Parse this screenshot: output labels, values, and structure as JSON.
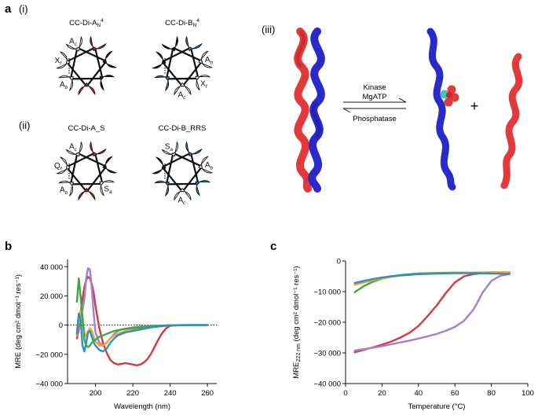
{
  "panel_labels": {
    "a": "a",
    "b": "b",
    "c": "c",
    "i": "(i)",
    "ii": "(ii)",
    "iii": "(iii)"
  },
  "wheels": [
    {
      "id": "w1",
      "title": "CC-Di-AN4",
      "title_main": "CC-Di-A",
      "title_sub": "N",
      "title_sup": "4",
      "cx": 110,
      "cy": 84,
      "residues": [
        {
          "letter": "E",
          "sub": "g",
          "color": "#e81c1c"
        },
        {
          "letter": "L",
          "sub": "d",
          "color": "#111111"
        },
        {
          "letter": "I",
          "sub": "a",
          "color": "#111111"
        },
        {
          "letter": "E",
          "sub": "e",
          "color": "#e81c1c"
        },
        {
          "letter": "A",
          "sub": "b",
          "color": "#ffffff"
        },
        {
          "letter": "X",
          "sub": "f",
          "color": "#ffffff"
        },
        {
          "letter": "A",
          "sub": "c",
          "color": "#ffffff"
        }
      ]
    },
    {
      "id": "w2",
      "title": "CC-Di-BN4",
      "title_main": "CC-Di-B",
      "title_sub": "N",
      "title_sup": "4",
      "cx": 232,
      "cy": 84,
      "residues": [
        {
          "letter": "K",
          "sub": "e",
          "color": "#2a7de1"
        },
        {
          "letter": "A",
          "sub": "b",
          "color": "#ffffff"
        },
        {
          "letter": "X",
          "sub": "f",
          "color": "#ffffff"
        },
        {
          "letter": "A",
          "sub": "c",
          "color": "#ffffff"
        },
        {
          "letter": "K",
          "sub": "g",
          "color": "#2a7de1"
        },
        {
          "letter": "L",
          "sub": "d",
          "color": "#111111"
        },
        {
          "letter": "I",
          "sub": "a",
          "color": "#111111"
        }
      ]
    },
    {
      "id": "w3",
      "title": "CC-Di-A_S",
      "title_main": "CC-Di-A_S",
      "title_sub": "",
      "title_sup": "",
      "cx": 110,
      "cy": 218,
      "residues": [
        {
          "letter": "E",
          "sub": "g",
          "color": "#e81c1c"
        },
        {
          "letter": "L",
          "sub": "d",
          "color": "#111111"
        },
        {
          "letter": "S",
          "sub": "a",
          "color": "#ffffff"
        },
        {
          "letter": "E",
          "sub": "e",
          "color": "#e81c1c"
        },
        {
          "letter": "A",
          "sub": "b",
          "color": "#ffffff"
        },
        {
          "letter": "Q",
          "sub": "f",
          "color": "#ffffff"
        },
        {
          "letter": "A",
          "sub": "c",
          "color": "#ffffff"
        }
      ]
    },
    {
      "id": "w4",
      "title": "CC-Di-B_RRS",
      "title_main": "CC-Di-B_RRS",
      "title_sub": "",
      "title_sup": "",
      "cx": 232,
      "cy": 218,
      "residues": [
        {
          "letter": "R",
          "sub": "e",
          "color": "#2a7de1"
        },
        {
          "letter": "A",
          "sub": "b",
          "color": "#ffffff"
        },
        {
          "letter": "R",
          "sub": "f",
          "color": "#2a7de1"
        },
        {
          "letter": "A",
          "sub": "c",
          "color": "#ffffff"
        },
        {
          "letter": "K",
          "sub": "g",
          "color": "#2a7de1"
        },
        {
          "letter": "L",
          "sub": "d",
          "color": "#111111"
        },
        {
          "letter": "S",
          "sub": "a",
          "color": "#ffffff"
        }
      ]
    }
  ],
  "scheme": {
    "forward_top": "Kinase",
    "forward_bottom": "MgATP",
    "reverse": "Phosphatase",
    "plus": "+"
  },
  "chart_data": [
    {
      "id": "b",
      "type": "line",
      "xlabel": "Wavelength (nm)",
      "ylabel": "MRE (deg cm² dmol⁻¹ res⁻¹)",
      "xlim": [
        185,
        265
      ],
      "ylim": [
        -40000,
        45000
      ],
      "xticks": [
        200,
        220,
        240,
        260
      ],
      "yticks": [
        -40000,
        -20000,
        0,
        20000,
        40000
      ],
      "ytick_labels": [
        "−40 000",
        "−20 000",
        "0",
        "20 000",
        "40 000"
      ],
      "zero_line": "dotted",
      "series": [
        {
          "color": "#d73a3a",
          "x": [
            190,
            191,
            192,
            193,
            194,
            195,
            196,
            197,
            198,
            199,
            200,
            202,
            204,
            206,
            208,
            210,
            212,
            214,
            216,
            218,
            220,
            222,
            224,
            226,
            228,
            230,
            232,
            234,
            236,
            238,
            240,
            245,
            250,
            255,
            260
          ],
          "y": [
            -9000,
            -3000,
            8000,
            18000,
            26000,
            31000,
            33000,
            32000,
            28000,
            22000,
            13000,
            -2000,
            -12000,
            -19000,
            -24000,
            -26000,
            -27000,
            -26500,
            -26000,
            -26500,
            -27000,
            -27500,
            -27000,
            -25500,
            -23000,
            -19000,
            -14000,
            -9000,
            -5000,
            -2000,
            -500,
            0,
            0,
            0,
            0
          ]
        },
        {
          "color": "#a37fd6",
          "x": [
            190,
            191,
            192,
            193,
            194,
            195,
            196,
            197,
            198,
            199,
            200,
            202,
            204,
            206,
            208,
            210,
            212,
            214,
            216,
            218,
            220,
            222,
            224,
            226,
            228,
            230,
            235,
            240,
            250,
            260
          ],
          "y": [
            -3000,
            2000,
            6000,
            10000,
            18000,
            32000,
            39000,
            38000,
            25000,
            8000,
            -5000,
            -12000,
            -14000,
            -12000,
            -9000,
            -6000,
            -4000,
            -3000,
            -2500,
            -2000,
            -1500,
            -1200,
            -1000,
            -800,
            -600,
            -500,
            -300,
            -100,
            0,
            0
          ]
        },
        {
          "color": "#f0a52a",
          "x": [
            190,
            191,
            192,
            193,
            194,
            195,
            196,
            197,
            198,
            199,
            200,
            202,
            204,
            206,
            208,
            210,
            212,
            214,
            216,
            218,
            220,
            222,
            224,
            226,
            228,
            230,
            235,
            240,
            250,
            260
          ],
          "y": [
            -7000,
            2000,
            10000,
            6000,
            -5000,
            -8000,
            -4000,
            -2000,
            -4000,
            -8000,
            -11000,
            -14000,
            -14000,
            -12000,
            -9000,
            -7000,
            -6000,
            -5000,
            -4000,
            -3500,
            -3000,
            -2500,
            -2000,
            -1500,
            -1200,
            -1000,
            -500,
            -200,
            0,
            0
          ]
        },
        {
          "color": "#3cab3c",
          "x": [
            190,
            191,
            192,
            193,
            194,
            195,
            196,
            197,
            198,
            199,
            200,
            202,
            204,
            206,
            208,
            210,
            212,
            214,
            216,
            218,
            220,
            222,
            224,
            226,
            228,
            230,
            235,
            240,
            250,
            260
          ],
          "y": [
            16000,
            32000,
            20000,
            5000,
            -10000,
            -14000,
            -15000,
            -14000,
            -12000,
            -11000,
            -10000,
            -8000,
            -7000,
            -6000,
            -5000,
            -4000,
            -3500,
            -3000,
            -2500,
            -2200,
            -2000,
            -1800,
            -1500,
            -1200,
            -1000,
            -800,
            -400,
            -100,
            0,
            0
          ]
        },
        {
          "color": "#2b8fc9",
          "x": [
            190,
            191,
            192,
            193,
            194,
            195,
            196,
            197,
            198,
            199,
            200,
            202,
            204,
            206,
            208,
            210,
            212,
            214,
            216,
            218,
            220,
            222,
            224,
            226,
            228,
            230,
            235,
            240,
            250,
            260
          ],
          "y": [
            -6000,
            8000,
            4000,
            -14000,
            -18000,
            -12000,
            -5000,
            -4000,
            -8000,
            -12000,
            -14000,
            -17000,
            -18000,
            -16000,
            -12000,
            -9000,
            -7000,
            -6000,
            -5000,
            -4500,
            -4000,
            -3500,
            -3000,
            -2500,
            -2000,
            -1500,
            -800,
            -300,
            0,
            0
          ]
        }
      ]
    },
    {
      "id": "c",
      "type": "line",
      "xlabel": "Temperature (°C)",
      "ylabel": "MRE222 nm (deg cm² dmol⁻¹ res⁻¹)",
      "ylabel_main": "MRE",
      "ylabel_sub": "222 nm",
      "ylabel_rest": " (deg cm² dmol⁻¹ res⁻¹)",
      "xlim": [
        0,
        100
      ],
      "ylim": [
        -40000,
        0
      ],
      "xticks": [
        0,
        20,
        40,
        60,
        80,
        100
      ],
      "yticks": [
        -40000,
        -30000,
        -20000,
        -10000,
        0
      ],
      "ytick_labels": [
        "−40 000",
        "−30 000",
        "−20 000",
        "−10 000",
        "0"
      ],
      "series": [
        {
          "color": "#d73a3a",
          "x": [
            5,
            10,
            15,
            20,
            25,
            30,
            35,
            40,
            45,
            50,
            55,
            60,
            65,
            70,
            75,
            80,
            85,
            90
          ],
          "y": [
            -29800,
            -29000,
            -28200,
            -27300,
            -26300,
            -25000,
            -23500,
            -21200,
            -18000,
            -14500,
            -10500,
            -7000,
            -5000,
            -4300,
            -4000,
            -3900,
            -3900,
            -3900
          ]
        },
        {
          "color": "#a37fd6",
          "x": [
            5,
            10,
            15,
            20,
            25,
            30,
            35,
            40,
            45,
            50,
            55,
            60,
            65,
            70,
            72,
            75,
            80,
            85,
            90
          ],
          "y": [
            -29200,
            -28800,
            -28300,
            -27800,
            -27200,
            -26600,
            -26000,
            -25300,
            -24600,
            -23800,
            -22800,
            -21500,
            -19500,
            -16000,
            -14000,
            -10500,
            -6500,
            -4800,
            -4300
          ]
        },
        {
          "color": "#3cab3c",
          "x": [
            5,
            10,
            15,
            20,
            25,
            30,
            40,
            50,
            60,
            70,
            80,
            90
          ],
          "y": [
            -10200,
            -8200,
            -6800,
            -5800,
            -5100,
            -4600,
            -4100,
            -3900,
            -3800,
            -3800,
            -3700,
            -3700
          ]
        },
        {
          "color": "#f0a52a",
          "x": [
            5,
            10,
            15,
            20,
            25,
            30,
            40,
            50,
            60,
            70,
            80,
            90
          ],
          "y": [
            -7800,
            -7000,
            -6300,
            -5700,
            -5200,
            -4800,
            -4300,
            -4000,
            -3900,
            -3800,
            -3800,
            -3800
          ]
        },
        {
          "color": "#2b8fc9",
          "x": [
            5,
            10,
            15,
            20,
            25,
            30,
            40,
            50,
            60,
            70,
            80,
            90
          ],
          "y": [
            -7200,
            -6500,
            -5900,
            -5400,
            -5000,
            -4700,
            -4300,
            -4100,
            -4000,
            -4000,
            -4100,
            -4200
          ]
        }
      ]
    }
  ]
}
